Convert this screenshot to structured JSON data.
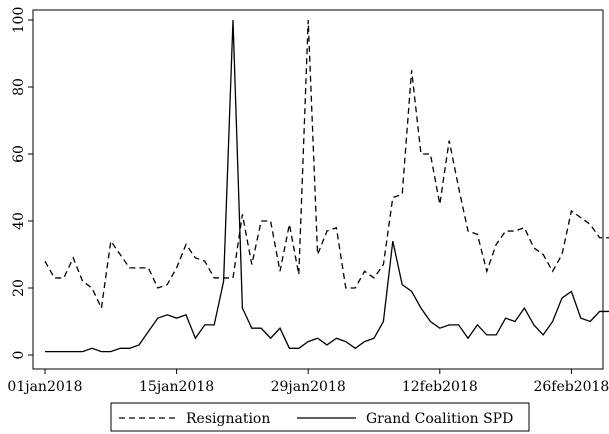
{
  "chart_data": {
    "type": "line",
    "title": "",
    "xlabel": "",
    "ylabel": "",
    "x": [
      "2018-01-01",
      "2018-01-02",
      "2018-01-03",
      "2018-01-04",
      "2018-01-05",
      "2018-01-06",
      "2018-01-07",
      "2018-01-08",
      "2018-01-09",
      "2018-01-10",
      "2018-01-11",
      "2018-01-12",
      "2018-01-13",
      "2018-01-14",
      "2018-01-15",
      "2018-01-16",
      "2018-01-17",
      "2018-01-18",
      "2018-01-19",
      "2018-01-20",
      "2018-01-21",
      "2018-01-22",
      "2018-01-23",
      "2018-01-24",
      "2018-01-25",
      "2018-01-26",
      "2018-01-27",
      "2018-01-28",
      "2018-01-29",
      "2018-01-30",
      "2018-01-31",
      "2018-02-01",
      "2018-02-02",
      "2018-02-03",
      "2018-02-04",
      "2018-02-05",
      "2018-02-06",
      "2018-02-07",
      "2018-02-08",
      "2018-02-09",
      "2018-02-10",
      "2018-02-11",
      "2018-02-12",
      "2018-02-13",
      "2018-02-14",
      "2018-02-15",
      "2018-02-16",
      "2018-02-17",
      "2018-02-18",
      "2018-02-19",
      "2018-02-20",
      "2018-02-21",
      "2018-02-22",
      "2018-02-23",
      "2018-02-24",
      "2018-02-25",
      "2018-02-26",
      "2018-02-27",
      "2018-02-28",
      "2018-03-01",
      "2018-03-02"
    ],
    "series": [
      {
        "name": "Resignation",
        "style": "dashed",
        "values": [
          28,
          23,
          23,
          29,
          22,
          20,
          14,
          34,
          30,
          26,
          26,
          26,
          20,
          21,
          26,
          33,
          29,
          28,
          23,
          23,
          23,
          42,
          27,
          40,
          40,
          25,
          39,
          24,
          100,
          30,
          37,
          38,
          20,
          20,
          25,
          23,
          27,
          47,
          48,
          85,
          60,
          60,
          45,
          64,
          50,
          37,
          36,
          25,
          33,
          37,
          37,
          38,
          32,
          30,
          25,
          30,
          43,
          41,
          39,
          35,
          35
        ]
      },
      {
        "name": "Grand Coalition SPD",
        "style": "solid",
        "values": [
          1,
          1,
          1,
          1,
          1,
          2,
          1,
          1,
          2,
          2,
          3,
          7,
          11,
          12,
          11,
          12,
          5,
          9,
          9,
          22,
          100,
          14,
          8,
          8,
          5,
          8,
          2,
          2,
          4,
          5,
          3,
          5,
          4,
          2,
          4,
          5,
          10,
          34,
          21,
          19,
          14,
          10,
          8,
          9,
          9,
          5,
          9,
          6,
          6,
          11,
          10,
          14,
          9,
          6,
          10,
          17,
          19,
          11,
          10,
          13,
          13
        ]
      }
    ],
    "xlim": [
      "2018-01-01",
      "2018-03-01"
    ],
    "ylim": [
      0,
      100
    ],
    "x_ticks": [
      "01jan2018",
      "15jan2018",
      "29jan2018",
      "12feb2018",
      "26feb2018"
    ],
    "y_ticks": [
      "0",
      "20",
      "40",
      "60",
      "80",
      "100"
    ],
    "grid": false,
    "legend_position": "bottom"
  },
  "legend": {
    "resignation_label": "Resignation",
    "grand_coalition_label": "Grand Coalition SPD"
  }
}
